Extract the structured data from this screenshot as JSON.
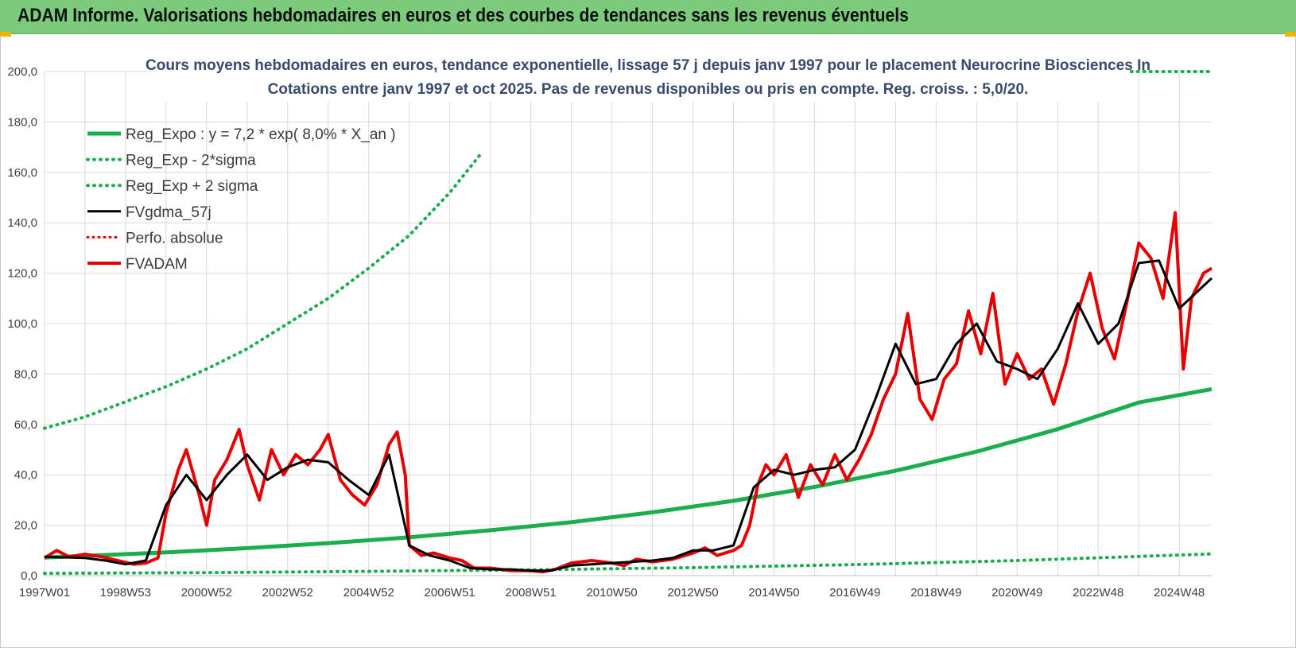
{
  "header": {
    "title": "ADAM Informe. Valorisations hebdomadaires en euros et des courbes de tendances sans les revenus éventuels"
  },
  "colors": {
    "header_bg": "#7ccb7c",
    "reg_expo": "#1aae4e",
    "fvgdma": "#000000",
    "perfo": "#d40000",
    "fvadam": "#e60000",
    "grid": "#d9d9d9",
    "subtitle": "#3a4a6b"
  },
  "chart_data": {
    "type": "line",
    "subtitle_lines": [
      "Cours moyens hebdomadaires en euros, tendance exponentielle, lissage 57 j depuis janv 1997 pour le placement Neurocrine Biosciences In",
      "Cotations entre janv 1997 et oct 2025. Pas de revenus disponibles ou pris en compte. Reg. croiss. : 5,0/20."
    ],
    "x_ticks": [
      "1997W01",
      "1998W53",
      "2000W52",
      "2002W52",
      "2004W52",
      "2006W51",
      "2008W51",
      "2010W50",
      "2012W50",
      "2014W50",
      "2016W49",
      "2018W49",
      "2020W49",
      "2022W48",
      "2024W48"
    ],
    "x_range": [
      1997.0,
      2025.8
    ],
    "y_ticks": [
      "0,0",
      "20,0",
      "40,0",
      "60,0",
      "80,0",
      "100,0",
      "120,0",
      "140,0",
      "160,0",
      "180,0",
      "200,0"
    ],
    "ylim": [
      0,
      200
    ],
    "grid": true,
    "legend_position": "top-left",
    "legend": [
      {
        "label": "Reg_Expo : y = 7,2 * exp( 8,0% *  X_an )",
        "style": "solid-green"
      },
      {
        "label": "Reg_Exp - 2*sigma",
        "style": "dotted-green"
      },
      {
        "label": "Reg_Exp + 2 sigma",
        "style": "dotted-green"
      },
      {
        "label": "FVgdma_57j",
        "style": "solid-black"
      },
      {
        "label": "Perfo. absolue",
        "style": "dotted-red"
      },
      {
        "label": "FVADAM",
        "style": "solid-red"
      }
    ],
    "series": [
      {
        "name": "Reg_Expo : y = 7,2 * exp( 8,0% *  X_an )",
        "x": [
          1997.0,
          2000.0,
          2002.0,
          2004.0,
          2006.0,
          2008.0,
          2010.0,
          2012.0,
          2014.0,
          2016.0,
          2018.0,
          2020.0,
          2022.0,
          2024.0,
          2025.8
        ],
        "y": [
          7.2,
          9.2,
          10.9,
          12.9,
          15.2,
          18.0,
          21.2,
          25.1,
          29.7,
          35.2,
          41.6,
          49.2,
          58.1,
          68.7,
          74.0
        ]
      },
      {
        "name": "Reg_Exp - 2*sigma",
        "x": [
          1997.0,
          2001.0,
          2005.0,
          2009.0,
          2013.0,
          2017.0,
          2021.0,
          2025.8
        ],
        "y": [
          0.9,
          1.2,
          1.7,
          2.3,
          3.2,
          4.4,
          6.0,
          8.6
        ]
      },
      {
        "name": "Reg_Exp + 2 sigma",
        "x": [
          1997.0,
          1998.0,
          1999.0,
          2000.0,
          2001.0,
          2002.0,
          2003.0,
          2004.0,
          2005.0,
          2006.0,
          2007.0,
          2007.8,
          2022.4,
          2025.8
        ],
        "y": [
          58.5,
          63.0,
          69.0,
          75.0,
          82.0,
          90.0,
          100.0,
          110.0,
          122.0,
          135.0,
          152.0,
          168.0,
          200.0,
          200.0
        ]
      },
      {
        "name": "FVgdma_57j",
        "x": [
          1997.0,
          1998.0,
          1998.5,
          1999.0,
          1999.5,
          2000.0,
          2000.5,
          2001.0,
          2001.5,
          2002.0,
          2002.5,
          2003.0,
          2003.5,
          2004.0,
          2004.5,
          2005.0,
          2005.5,
          2006.0,
          2006.5,
          2007.0,
          2007.5,
          2008.0,
          2008.5,
          2009.0,
          2009.5,
          2010.0,
          2010.5,
          2011.0,
          2011.5,
          2012.0,
          2012.5,
          2013.0,
          2013.5,
          2014.0,
          2014.5,
          2015.0,
          2015.5,
          2016.0,
          2016.5,
          2017.0,
          2017.5,
          2018.0,
          2018.5,
          2019.0,
          2019.5,
          2020.0,
          2020.5,
          2021.0,
          2021.5,
          2022.0,
          2022.5,
          2023.0,
          2023.5,
          2024.0,
          2024.5,
          2025.0,
          2025.8
        ],
        "y": [
          7.5,
          7.0,
          6.0,
          4.5,
          6.0,
          28.0,
          40.0,
          30.0,
          40.0,
          48.0,
          38.0,
          43.0,
          46.0,
          45.0,
          38.0,
          32.0,
          48.0,
          12.0,
          8.0,
          6.0,
          3.0,
          2.5,
          2.5,
          2.0,
          2.0,
          4.0,
          4.5,
          5.0,
          5.5,
          6.0,
          7.0,
          10.0,
          10.0,
          12.0,
          35.0,
          42.0,
          40.0,
          42.0,
          43.0,
          50.0,
          70.0,
          92.0,
          76.0,
          78.0,
          92.0,
          100.0,
          85.0,
          82.0,
          78.0,
          90.0,
          108.0,
          92.0,
          100.0,
          124.0,
          125.0,
          106.0,
          118.0
        ]
      },
      {
        "name": "FVADAM",
        "x": [
          1997.0,
          1997.3,
          1997.6,
          1998.0,
          1998.4,
          1998.8,
          1999.2,
          1999.5,
          1999.8,
          2000.0,
          2000.3,
          2000.5,
          2000.8,
          2001.0,
          2001.2,
          2001.5,
          2001.8,
          2002.0,
          2002.3,
          2002.6,
          2002.9,
          2003.2,
          2003.5,
          2003.8,
          2004.0,
          2004.3,
          2004.6,
          2004.9,
          2005.2,
          2005.5,
          2005.7,
          2005.9,
          2006.0,
          2006.3,
          2006.6,
          2007.0,
          2007.3,
          2007.6,
          2008.0,
          2008.5,
          2009.0,
          2009.3,
          2009.6,
          2010.0,
          2010.5,
          2011.0,
          2011.3,
          2011.6,
          2012.0,
          2012.5,
          2013.0,
          2013.3,
          2013.6,
          2014.0,
          2014.2,
          2014.4,
          2014.6,
          2014.8,
          2015.0,
          2015.3,
          2015.6,
          2015.9,
          2016.2,
          2016.5,
          2016.8,
          2017.1,
          2017.4,
          2017.7,
          2018.0,
          2018.3,
          2018.6,
          2018.9,
          2019.2,
          2019.5,
          2019.8,
          2020.1,
          2020.4,
          2020.7,
          2021.0,
          2021.3,
          2021.6,
          2021.9,
          2022.2,
          2022.5,
          2022.8,
          2023.1,
          2023.4,
          2023.7,
          2024.0,
          2024.3,
          2024.6,
          2024.9,
          2025.1,
          2025.3,
          2025.6,
          2025.8
        ],
        "y": [
          7.0,
          10.0,
          7.5,
          8.5,
          7.5,
          6.0,
          4.5,
          5.0,
          7.0,
          25.0,
          42.0,
          50.0,
          33.0,
          20.0,
          38.0,
          46.0,
          58.0,
          44.0,
          30.0,
          50.0,
          40.0,
          48.0,
          44.0,
          50.0,
          56.0,
          38.0,
          32.0,
          28.0,
          36.0,
          52.0,
          57.0,
          40.0,
          12.0,
          8.0,
          9.0,
          7.0,
          6.0,
          3.0,
          3.0,
          2.0,
          2.0,
          1.5,
          2.5,
          5.0,
          6.0,
          5.0,
          4.0,
          6.5,
          5.5,
          6.5,
          9.0,
          11.0,
          8.0,
          10.0,
          12.0,
          20.0,
          36.0,
          44.0,
          40.0,
          48.0,
          31.0,
          44.0,
          36.0,
          48.0,
          38.0,
          46.0,
          56.0,
          70.0,
          80.0,
          104.0,
          70.0,
          62.0,
          78.0,
          84.0,
          105.0,
          88.0,
          112.0,
          76.0,
          88.0,
          78.0,
          82.0,
          68.0,
          84.0,
          105.0,
          120.0,
          98.0,
          86.0,
          108.0,
          132.0,
          126.0,
          110.0,
          144.0,
          82.0,
          110.0,
          120.0,
          122.0
        ]
      }
    ]
  }
}
